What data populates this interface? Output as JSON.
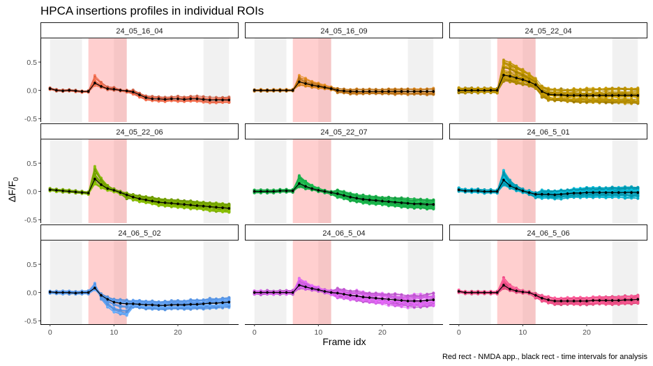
{
  "chart_data": {
    "type": "line",
    "title": "HPCA insertions profiles in individual ROIs",
    "xlabel": "Frame idx",
    "ylabel_main": "ΔF/F",
    "ylabel_sub": "0",
    "caption": "Red rect - NMDA app., black rect - time intervals for analysis",
    "xlim": [
      -1.5,
      29.5
    ],
    "ylim": [
      -0.56,
      0.92
    ],
    "x_ticks": [
      0,
      10,
      20
    ],
    "x_tick_labels": [
      "0",
      "10",
      "20"
    ],
    "y_ticks": [
      -0.5,
      0,
      0.5
    ],
    "y_tick_labels": [
      "-0.5",
      "0.0",
      "0.5"
    ],
    "analysis_intervals": [
      [
        0,
        5
      ],
      [
        10,
        12
      ],
      [
        24,
        28
      ]
    ],
    "nmda_interval": [
      6,
      12
    ],
    "panels": [
      {
        "label": "24_05_16_04",
        "color": "#F06A4A",
        "n_rois": 12,
        "mean": [
          0.03,
          0.0,
          -0.01,
          0.0,
          -0.01,
          -0.02,
          -0.02,
          0.13,
          0.07,
          0.03,
          0.02,
          0.0,
          -0.01,
          -0.03,
          -0.08,
          -0.13,
          -0.15,
          -0.15,
          -0.16,
          -0.15,
          -0.15,
          -0.16,
          -0.15,
          -0.15,
          -0.16,
          -0.17,
          -0.17,
          -0.17,
          -0.17
        ],
        "spread": 0.04
      },
      {
        "label": "24_05_16_09",
        "color": "#D27E17",
        "n_rois": 12,
        "mean": [
          0.0,
          0.0,
          0.0,
          0.0,
          0.0,
          0.0,
          0.0,
          0.15,
          0.12,
          0.09,
          0.07,
          0.05,
          0.03,
          0.0,
          -0.01,
          -0.02,
          -0.02,
          -0.02,
          -0.02,
          -0.02,
          -0.02,
          -0.02,
          -0.02,
          -0.02,
          -0.02,
          -0.02,
          -0.02,
          -0.02,
          -0.02
        ],
        "spread": 0.05
      },
      {
        "label": "24_05_22_04",
        "color": "#C09500",
        "n_rois": 40,
        "mean": [
          0.0,
          0.0,
          0.0,
          0.0,
          0.0,
          0.0,
          0.0,
          0.27,
          0.25,
          0.22,
          0.19,
          0.15,
          0.1,
          -0.02,
          -0.07,
          -0.08,
          -0.08,
          -0.09,
          -0.09,
          -0.09,
          -0.09,
          -0.09,
          -0.09,
          -0.09,
          -0.09,
          -0.09,
          -0.09,
          -0.09,
          -0.09
        ],
        "spread": 0.11
      },
      {
        "label": "24_05_22_06",
        "color": "#7AAA00",
        "n_rois": 30,
        "mean": [
          0.03,
          0.02,
          0.01,
          0.0,
          -0.01,
          -0.02,
          -0.03,
          0.22,
          0.12,
          0.05,
          0.02,
          -0.02,
          -0.06,
          -0.1,
          -0.13,
          -0.15,
          -0.17,
          -0.19,
          -0.2,
          -0.21,
          -0.22,
          -0.23,
          -0.24,
          -0.25,
          -0.26,
          -0.27,
          -0.28,
          -0.29,
          -0.3
        ],
        "spread": 0.06
      },
      {
        "label": "24_05_22_07",
        "color": "#19B34A",
        "n_rois": 40,
        "mean": [
          0.0,
          0.0,
          0.0,
          0.0,
          0.01,
          0.01,
          0.01,
          0.14,
          0.09,
          0.05,
          0.02,
          0.0,
          -0.02,
          -0.04,
          -0.07,
          -0.1,
          -0.12,
          -0.14,
          -0.15,
          -0.16,
          -0.17,
          -0.18,
          -0.19,
          -0.2,
          -0.21,
          -0.22,
          -0.22,
          -0.23,
          -0.23
        ],
        "spread": 0.07
      },
      {
        "label": "24_06_5_01",
        "color": "#05B3CF",
        "n_rois": 40,
        "mean": [
          0.03,
          0.01,
          0.01,
          0.01,
          0.0,
          0.0,
          0.0,
          0.2,
          0.1,
          0.05,
          0.01,
          -0.02,
          -0.05,
          -0.05,
          -0.05,
          -0.06,
          -0.05,
          -0.04,
          -0.03,
          -0.03,
          -0.02,
          -0.02,
          -0.02,
          -0.02,
          -0.02,
          -0.02,
          -0.02,
          -0.02,
          -0.02
        ],
        "spread": 0.08
      },
      {
        "label": "24_06_5_02",
        "color": "#5C9DF2",
        "n_rois": 30,
        "mean": [
          0.01,
          0.0,
          0.0,
          0.0,
          -0.01,
          0.0,
          0.0,
          0.08,
          -0.05,
          -0.12,
          -0.17,
          -0.19,
          -0.2,
          -0.2,
          -0.21,
          -0.22,
          -0.22,
          -0.23,
          -0.23,
          -0.22,
          -0.22,
          -0.22,
          -0.21,
          -0.21,
          -0.2,
          -0.19,
          -0.19,
          -0.18,
          -0.17
        ],
        "spread": 0.07
      },
      {
        "label": "24_06_5_04",
        "color": "#D35FE6",
        "n_rois": 30,
        "mean": [
          0.0,
          0.0,
          0.0,
          0.0,
          0.0,
          0.0,
          0.0,
          0.13,
          0.1,
          0.07,
          0.05,
          0.02,
          0.0,
          -0.01,
          -0.03,
          -0.05,
          -0.06,
          -0.08,
          -0.09,
          -0.1,
          -0.11,
          -0.12,
          -0.13,
          -0.14,
          -0.15,
          -0.15,
          -0.15,
          -0.14,
          -0.13
        ],
        "spread": 0.09
      },
      {
        "label": "24_06_5_06",
        "color": "#F8528A",
        "n_rois": 30,
        "mean": [
          0.02,
          0.0,
          0.0,
          0.0,
          0.0,
          0.0,
          0.0,
          0.13,
          0.06,
          0.03,
          0.01,
          0.0,
          -0.05,
          -0.1,
          -0.13,
          -0.15,
          -0.15,
          -0.15,
          -0.15,
          -0.15,
          -0.15,
          -0.14,
          -0.14,
          -0.14,
          -0.14,
          -0.14,
          -0.13,
          -0.13,
          -0.12
        ],
        "spread": 0.06
      }
    ]
  }
}
